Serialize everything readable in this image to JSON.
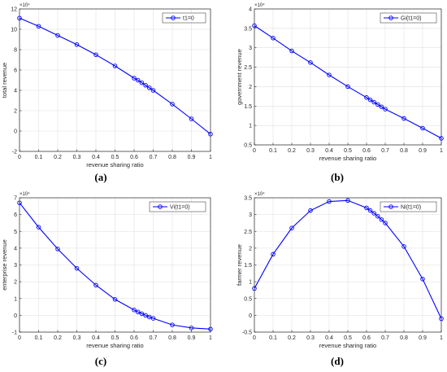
{
  "chart_data": [
    {
      "type": "line",
      "panel_label": "(a)",
      "xlabel": "revenue sharing ratio",
      "ylabel": "total revenue",
      "exponent_label": "×10⁴",
      "xlim": [
        0,
        1
      ],
      "ylim": [
        -2,
        12
      ],
      "xticks": [
        0,
        0.1,
        0.2,
        0.3,
        0.4,
        0.5,
        0.6,
        0.7,
        0.8,
        0.9,
        1
      ],
      "yticks": [
        -2,
        0,
        2,
        4,
        6,
        8,
        10,
        12
      ],
      "grid": true,
      "legend_position": "top-right",
      "series": [
        {
          "name": "t1=0",
          "color": "#0000ff",
          "x": [
            0,
            0.1,
            0.2,
            0.3,
            0.4,
            0.5,
            0.6,
            0.62,
            0.64,
            0.66,
            0.68,
            0.7,
            0.8,
            0.9,
            1
          ],
          "y": [
            11.1,
            10.3,
            9.4,
            8.5,
            7.5,
            6.4,
            5.2,
            5.0,
            4.75,
            4.5,
            4.25,
            4.0,
            2.65,
            1.2,
            -0.3
          ]
        }
      ]
    },
    {
      "type": "line",
      "panel_label": "(b)",
      "xlabel": "revenue sharing ratio",
      "ylabel": "government revenue",
      "exponent_label": "×10⁴",
      "xlim": [
        0,
        1
      ],
      "ylim": [
        0.5,
        4
      ],
      "xticks": [
        0,
        0.1,
        0.2,
        0.3,
        0.4,
        0.5,
        0.6,
        0.7,
        0.8,
        0.9,
        1
      ],
      "yticks": [
        0.5,
        1,
        1.5,
        2,
        2.5,
        3,
        3.5,
        4
      ],
      "grid": true,
      "legend_position": "top-right",
      "series": [
        {
          "name": "Gi(t1=0)",
          "color": "#0000ff",
          "x": [
            0,
            0.1,
            0.2,
            0.3,
            0.4,
            0.5,
            0.6,
            0.62,
            0.64,
            0.66,
            0.68,
            0.7,
            0.8,
            0.9,
            1
          ],
          "y": [
            3.57,
            3.25,
            2.92,
            2.62,
            2.3,
            2.0,
            1.72,
            1.66,
            1.6,
            1.54,
            1.48,
            1.42,
            1.18,
            0.93,
            0.67
          ]
        }
      ]
    },
    {
      "type": "line",
      "panel_label": "(c)",
      "xlabel": "revenue sharing ratio",
      "ylabel": "enterprise revenue",
      "exponent_label": "×10⁴",
      "xlim": [
        0,
        1
      ],
      "ylim": [
        -1,
        7
      ],
      "xticks": [
        0,
        0.1,
        0.2,
        0.3,
        0.4,
        0.5,
        0.6,
        0.7,
        0.8,
        0.9,
        1
      ],
      "yticks": [
        -1,
        0,
        1,
        2,
        3,
        4,
        5,
        6,
        7
      ],
      "grid": true,
      "legend_position": "top-right",
      "series": [
        {
          "name": "Vi(t1=0)",
          "color": "#0000ff",
          "x": [
            0,
            0.1,
            0.2,
            0.3,
            0.4,
            0.5,
            0.6,
            0.62,
            0.64,
            0.66,
            0.68,
            0.7,
            0.8,
            0.9,
            1
          ],
          "y": [
            6.7,
            5.25,
            3.95,
            2.8,
            1.8,
            0.95,
            0.32,
            0.2,
            0.1,
            0.0,
            -0.1,
            -0.18,
            -0.57,
            -0.75,
            -0.82
          ]
        }
      ]
    },
    {
      "type": "line",
      "panel_label": "(d)",
      "xlabel": "revenue sharing ratio",
      "ylabel": "farmer revenue",
      "exponent_label": "×10⁴",
      "xlim": [
        0,
        1
      ],
      "ylim": [
        -0.5,
        3.5
      ],
      "xticks": [
        0,
        0.1,
        0.2,
        0.3,
        0.4,
        0.5,
        0.6,
        0.7,
        0.8,
        0.9,
        1
      ],
      "yticks": [
        -0.5,
        0,
        0.5,
        1,
        1.5,
        2,
        2.5,
        3,
        3.5
      ],
      "grid": true,
      "legend_position": "top-right",
      "series": [
        {
          "name": "Ni(t1=0)",
          "color": "#0000ff",
          "x": [
            0,
            0.1,
            0.2,
            0.3,
            0.4,
            0.5,
            0.6,
            0.62,
            0.64,
            0.66,
            0.68,
            0.7,
            0.8,
            0.9,
            1
          ],
          "y": [
            0.8,
            1.82,
            2.6,
            3.12,
            3.39,
            3.42,
            3.2,
            3.12,
            3.04,
            2.95,
            2.85,
            2.75,
            2.05,
            1.08,
            -0.1
          ]
        }
      ]
    }
  ]
}
